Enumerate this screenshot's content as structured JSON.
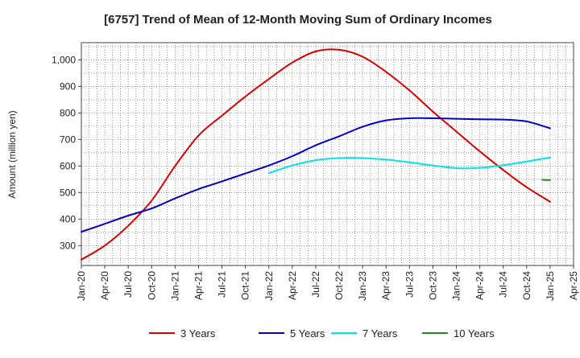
{
  "chart_data": {
    "type": "line",
    "title": "[6757]  Trend of Mean of 12-Month Moving Sum of Ordinary Incomes",
    "xlabel": "",
    "ylabel": "Amount (million yen)",
    "ylim": [
      225,
      1065
    ],
    "yticks": [
      300,
      400,
      500,
      600,
      700,
      800,
      900,
      1000
    ],
    "ytick_labels": [
      "300",
      "400",
      "500",
      "600",
      "700",
      "800",
      "900",
      "1,000"
    ],
    "x_start_month": 0,
    "x_end_month": 63,
    "grid": true,
    "legend_position": "bottom",
    "categories": [
      "Jan-20",
      "Apr-20",
      "Jul-20",
      "Oct-20",
      "Jan-21",
      "Apr-21",
      "Jul-21",
      "Oct-21",
      "Jan-22",
      "Apr-22",
      "Jul-22",
      "Oct-22",
      "Jan-23",
      "Apr-23",
      "Jul-23",
      "Oct-23",
      "Jan-24",
      "Apr-24",
      "Jul-24",
      "Oct-24",
      "Jan-25",
      "Apr-25"
    ],
    "series": [
      {
        "name": "3 Years",
        "color": "#dd0000",
        "x": [
          0,
          3,
          6,
          9,
          12,
          15,
          18,
          21,
          24,
          27,
          30,
          33,
          36,
          39,
          42,
          45,
          48,
          51,
          54,
          57,
          60
        ],
        "values": [
          247,
          300,
          375,
          470,
          600,
          715,
          790,
          862,
          928,
          990,
          1032,
          1038,
          1012,
          955,
          885,
          805,
          730,
          655,
          585,
          520,
          465
        ]
      },
      {
        "name": "5 Years",
        "color": "#0000cc",
        "x": [
          0,
          3,
          6,
          9,
          12,
          15,
          18,
          21,
          24,
          27,
          30,
          33,
          36,
          39,
          42,
          45,
          48,
          51,
          54,
          57,
          60
        ],
        "values": [
          352,
          382,
          413,
          440,
          478,
          513,
          542,
          572,
          602,
          637,
          678,
          712,
          748,
          772,
          780,
          780,
          778,
          776,
          775,
          768,
          742
        ]
      },
      {
        "name": "7 Years",
        "color": "#00e5e5",
        "x": [
          24,
          27,
          30,
          33,
          36,
          39,
          42,
          45,
          48,
          51,
          54,
          57,
          60
        ],
        "values": [
          573,
          602,
          622,
          630,
          630,
          624,
          614,
          602,
          592,
          593,
          603,
          617,
          632
        ]
      },
      {
        "name": "10 Years",
        "color": "#228b22",
        "x": [
          59,
          60
        ],
        "values": [
          548,
          547
        ]
      }
    ]
  }
}
